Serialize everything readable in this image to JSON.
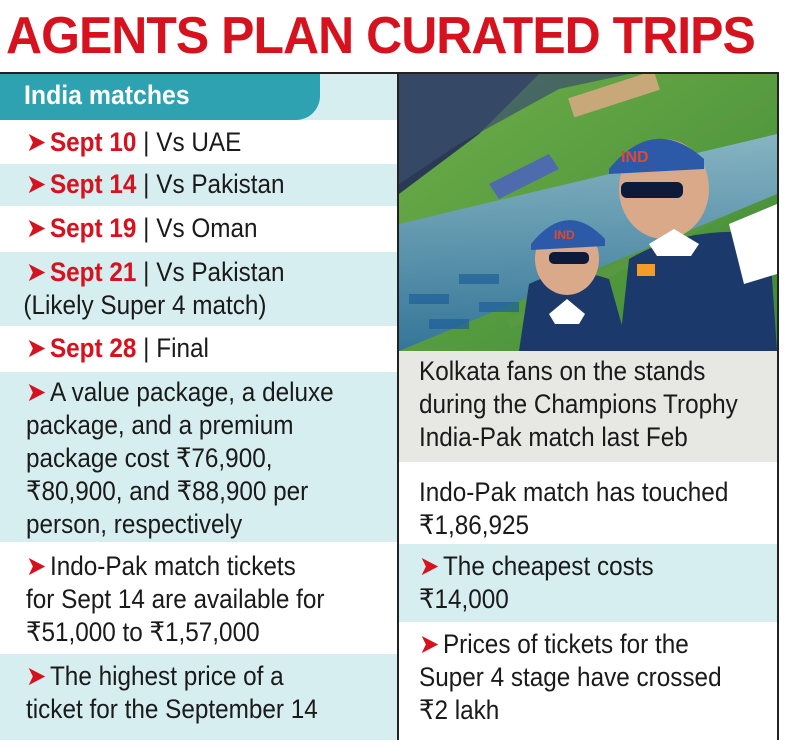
{
  "headline": "AGENTS PLAN CURATED TRIPS",
  "section_label": "India matches",
  "matches": [
    {
      "date": "Sept 10",
      "opponent": "| Vs UAE",
      "note": ""
    },
    {
      "date": "Sept 14",
      "opponent": "| Vs Pakistan",
      "note": ""
    },
    {
      "date": "Sept 19",
      "opponent": "| Vs Oman",
      "note": ""
    },
    {
      "date": "Sept 21",
      "opponent": "| Vs Pakistan",
      "note": "(Likely Super 4 match)"
    },
    {
      "date": "Sept 28",
      "opponent": "| Final",
      "note": ""
    }
  ],
  "left_points": [
    {
      "lines": [
        "A value package, a deluxe",
        "package, and a premium",
        "package cost ₹76,900,",
        "₹80,900, and ₹88,900 per",
        "person, respectively"
      ]
    },
    {
      "lines": [
        "Indo-Pak match tickets",
        "for Sept 14 are available for",
        "₹51,000 to ₹1,57,000"
      ]
    },
    {
      "lines": [
        "The highest price of a",
        "ticket for the September 14"
      ]
    }
  ],
  "caption": [
    "Kolkata fans on the stands",
    "during the Champions Trophy",
    "India-Pak match last Feb"
  ],
  "right_continuation": [
    "Indo-Pak match has touched",
    "₹1,86,925"
  ],
  "right_points": [
    {
      "lines": [
        "The cheapest costs",
        "₹14,000"
      ]
    },
    {
      "lines": [
        "Prices of tickets for the",
        "Super 4 stage have crossed",
        "₹2 lakh"
      ]
    }
  ],
  "photo_cap_text": "IND",
  "colors": {
    "accent_red": "#d6121e",
    "teal": "#2ea2b0",
    "teal_light": "#d7eef0",
    "grey": "#e7e7e4"
  }
}
